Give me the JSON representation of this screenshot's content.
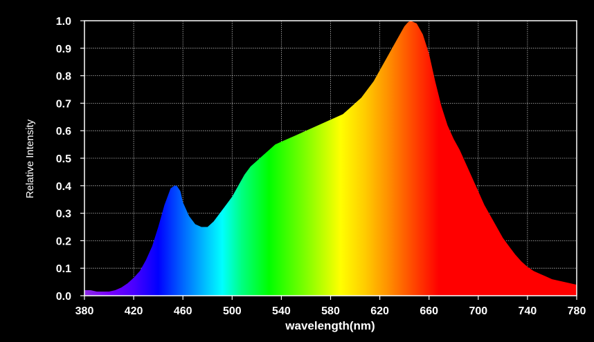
{
  "chart_data": {
    "type": "area",
    "title": "",
    "xlabel": "wavelength(nm)",
    "ylabel": "Relative Intensity",
    "xlim": [
      380,
      780
    ],
    "ylim": [
      0,
      1.0
    ],
    "x_ticks": [
      "380",
      "420",
      "460",
      "500",
      "540",
      "580",
      "620",
      "660",
      "700",
      "740",
      "780"
    ],
    "y_ticks": [
      "0.0",
      "0.1",
      "0.2",
      "0.3",
      "0.4",
      "0.5",
      "0.6",
      "0.7",
      "0.8",
      "0.9",
      "1.0"
    ],
    "grid": true,
    "fill": "visible-spectrum-colors",
    "background_color": "#000000",
    "axis_color": "#ffffff",
    "series": [
      {
        "x": [
          380,
          385,
          390,
          395,
          400,
          405,
          410,
          415,
          420,
          425,
          430,
          435,
          440,
          445,
          450,
          453,
          455,
          458,
          460,
          465,
          470,
          475,
          480,
          485,
          490,
          495,
          500,
          505,
          510,
          515,
          520,
          525,
          530,
          535,
          540,
          545,
          550,
          555,
          560,
          565,
          570,
          575,
          580,
          585,
          590,
          595,
          600,
          605,
          610,
          615,
          620,
          625,
          630,
          635,
          640,
          643,
          645,
          650,
          655,
          660,
          665,
          670,
          675,
          680,
          685,
          690,
          695,
          700,
          705,
          710,
          715,
          720,
          725,
          730,
          735,
          740,
          745,
          750,
          755,
          760,
          765,
          770,
          775,
          780
        ],
        "y": [
          0.02,
          0.02,
          0.015,
          0.015,
          0.015,
          0.02,
          0.03,
          0.045,
          0.065,
          0.09,
          0.13,
          0.18,
          0.25,
          0.33,
          0.39,
          0.4,
          0.4,
          0.38,
          0.34,
          0.29,
          0.26,
          0.25,
          0.25,
          0.27,
          0.3,
          0.33,
          0.36,
          0.4,
          0.44,
          0.47,
          0.49,
          0.51,
          0.53,
          0.55,
          0.56,
          0.57,
          0.58,
          0.59,
          0.6,
          0.61,
          0.62,
          0.63,
          0.64,
          0.65,
          0.66,
          0.68,
          0.7,
          0.72,
          0.75,
          0.78,
          0.82,
          0.86,
          0.9,
          0.94,
          0.98,
          0.995,
          1.0,
          0.99,
          0.95,
          0.88,
          0.78,
          0.69,
          0.62,
          0.57,
          0.53,
          0.48,
          0.43,
          0.38,
          0.33,
          0.29,
          0.25,
          0.21,
          0.18,
          0.15,
          0.125,
          0.105,
          0.09,
          0.08,
          0.07,
          0.06,
          0.055,
          0.05,
          0.045,
          0.04
        ]
      }
    ]
  }
}
